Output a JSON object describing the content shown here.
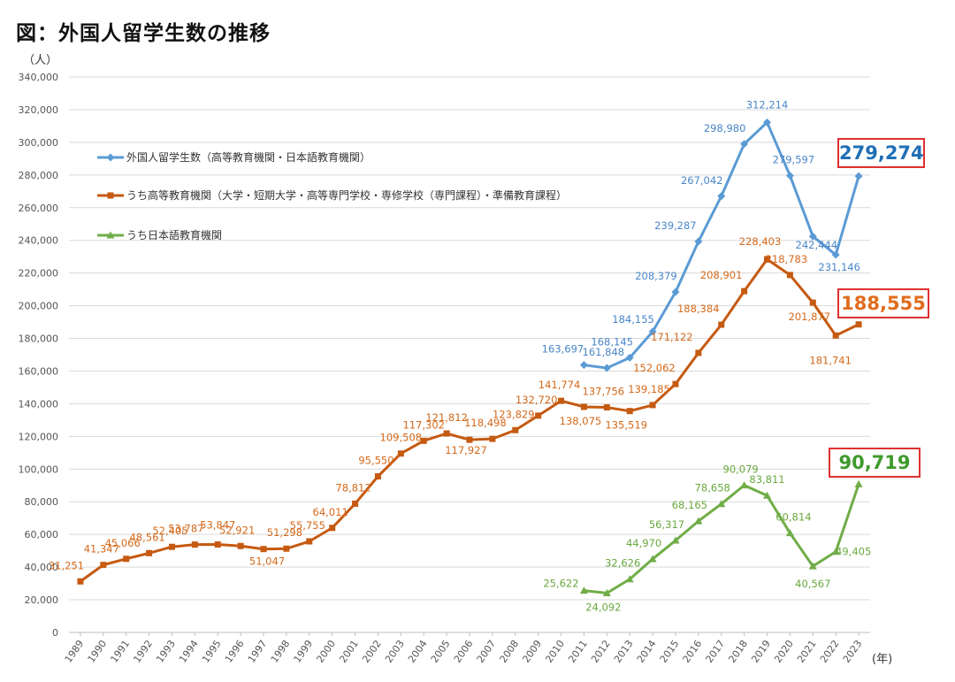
{
  "title": "図：外国人留学生数の推移",
  "chart_data": {
    "type": "line",
    "y_unit": "（人）",
    "x_unit": "(年)",
    "ylim": [
      0,
      340000
    ],
    "y_ticks": [
      "0",
      "20,000",
      "40,000",
      "60,000",
      "80,000",
      "100,000",
      "120,000",
      "140,000",
      "160,000",
      "180,000",
      "200,000",
      "220,000",
      "240,000",
      "260,000",
      "280,000",
      "300,000",
      "320,000",
      "340,000"
    ],
    "x": [
      1989,
      1990,
      1991,
      1992,
      1993,
      1994,
      1995,
      1996,
      1997,
      1998,
      1999,
      2000,
      2001,
      2002,
      2003,
      2004,
      2005,
      2006,
      2007,
      2008,
      2009,
      2010,
      2011,
      2012,
      2013,
      2014,
      2015,
      2016,
      2017,
      2018,
      2019,
      2020,
      2021,
      2022,
      2023
    ],
    "grid": "horizontal",
    "legend_position": "top-left",
    "series": [
      {
        "name": "外国人留学生数（高等教育機関・日本語教育機関）",
        "color": "#5b9bd5",
        "label_color": "#4a86c8",
        "marker": "diamond",
        "values": [
          null,
          null,
          null,
          null,
          null,
          null,
          null,
          null,
          null,
          null,
          null,
          null,
          null,
          null,
          null,
          null,
          null,
          null,
          null,
          null,
          null,
          null,
          163697,
          161848,
          168145,
          184155,
          208379,
          239287,
          267042,
          298980,
          312214,
          279597,
          242444,
          231146,
          279274
        ],
        "labels": [
          null,
          null,
          null,
          null,
          null,
          null,
          null,
          null,
          null,
          null,
          null,
          null,
          null,
          null,
          null,
          null,
          null,
          null,
          null,
          null,
          null,
          null,
          "163,697",
          "161,848",
          "168,145",
          "184,155",
          "208,379",
          "239,287",
          "267,042",
          "298,980",
          "312,214",
          "279,597",
          "242,444",
          "231,146",
          null
        ],
        "highlight": "279,274",
        "highlight_color": "#1f6fb5"
      },
      {
        "name": "うち高等教育機関（大学・短期大学・高等専門学校・専修学校（専門課程）・準備教育課程）",
        "color": "#c55a11",
        "label_color": "#d4691a",
        "marker": "square",
        "values": [
          31251,
          41347,
          45066,
          48561,
          52405,
          53787,
          53847,
          52921,
          51047,
          51298,
          55755,
          64011,
          78812,
          95550,
          109508,
          117302,
          121812,
          117927,
          118498,
          123829,
          132720,
          141774,
          138075,
          137756,
          135519,
          139185,
          152062,
          171122,
          188384,
          208901,
          228403,
          218783,
          201877,
          181741,
          188555
        ],
        "labels": [
          "31,251",
          "41,347",
          "45,066",
          "48,561",
          "52,405",
          "53,787",
          "53,847",
          "52,921",
          "51,047",
          "51,298",
          "55,755",
          "64,011",
          "78,812",
          "95,550",
          "109,508",
          "117,302",
          "121,812",
          "117,927",
          "118,498",
          "123,829",
          "132,720",
          "141,774",
          "138,075",
          "137,756",
          "135,519",
          "139,185",
          "152,062",
          "171,122",
          "188,384",
          "208,901",
          "228,403",
          "218,783",
          "201,877",
          "181,741",
          null
        ],
        "highlight": "188,555",
        "highlight_color": "#e06d1e"
      },
      {
        "name": "うち日本語教育機関",
        "color": "#70ad47",
        "label_color": "#6aa83f",
        "marker": "triangle",
        "values": [
          null,
          null,
          null,
          null,
          null,
          null,
          null,
          null,
          null,
          null,
          null,
          null,
          null,
          null,
          null,
          null,
          null,
          null,
          null,
          null,
          null,
          null,
          25622,
          24092,
          32626,
          44970,
          56317,
          68165,
          78658,
          90079,
          83811,
          60814,
          40567,
          49405,
          90719
        ],
        "labels": [
          null,
          null,
          null,
          null,
          null,
          null,
          null,
          null,
          null,
          null,
          null,
          null,
          null,
          null,
          null,
          null,
          null,
          null,
          null,
          null,
          null,
          null,
          "25,622",
          "24,092",
          "32,626",
          "44,970",
          "56,317",
          "68,165",
          "78,658",
          "90,079",
          "83,811",
          "60,814",
          "40,567",
          "49,405",
          null
        ],
        "highlight": "90,719",
        "highlight_color": "#3f9a2c"
      }
    ]
  }
}
